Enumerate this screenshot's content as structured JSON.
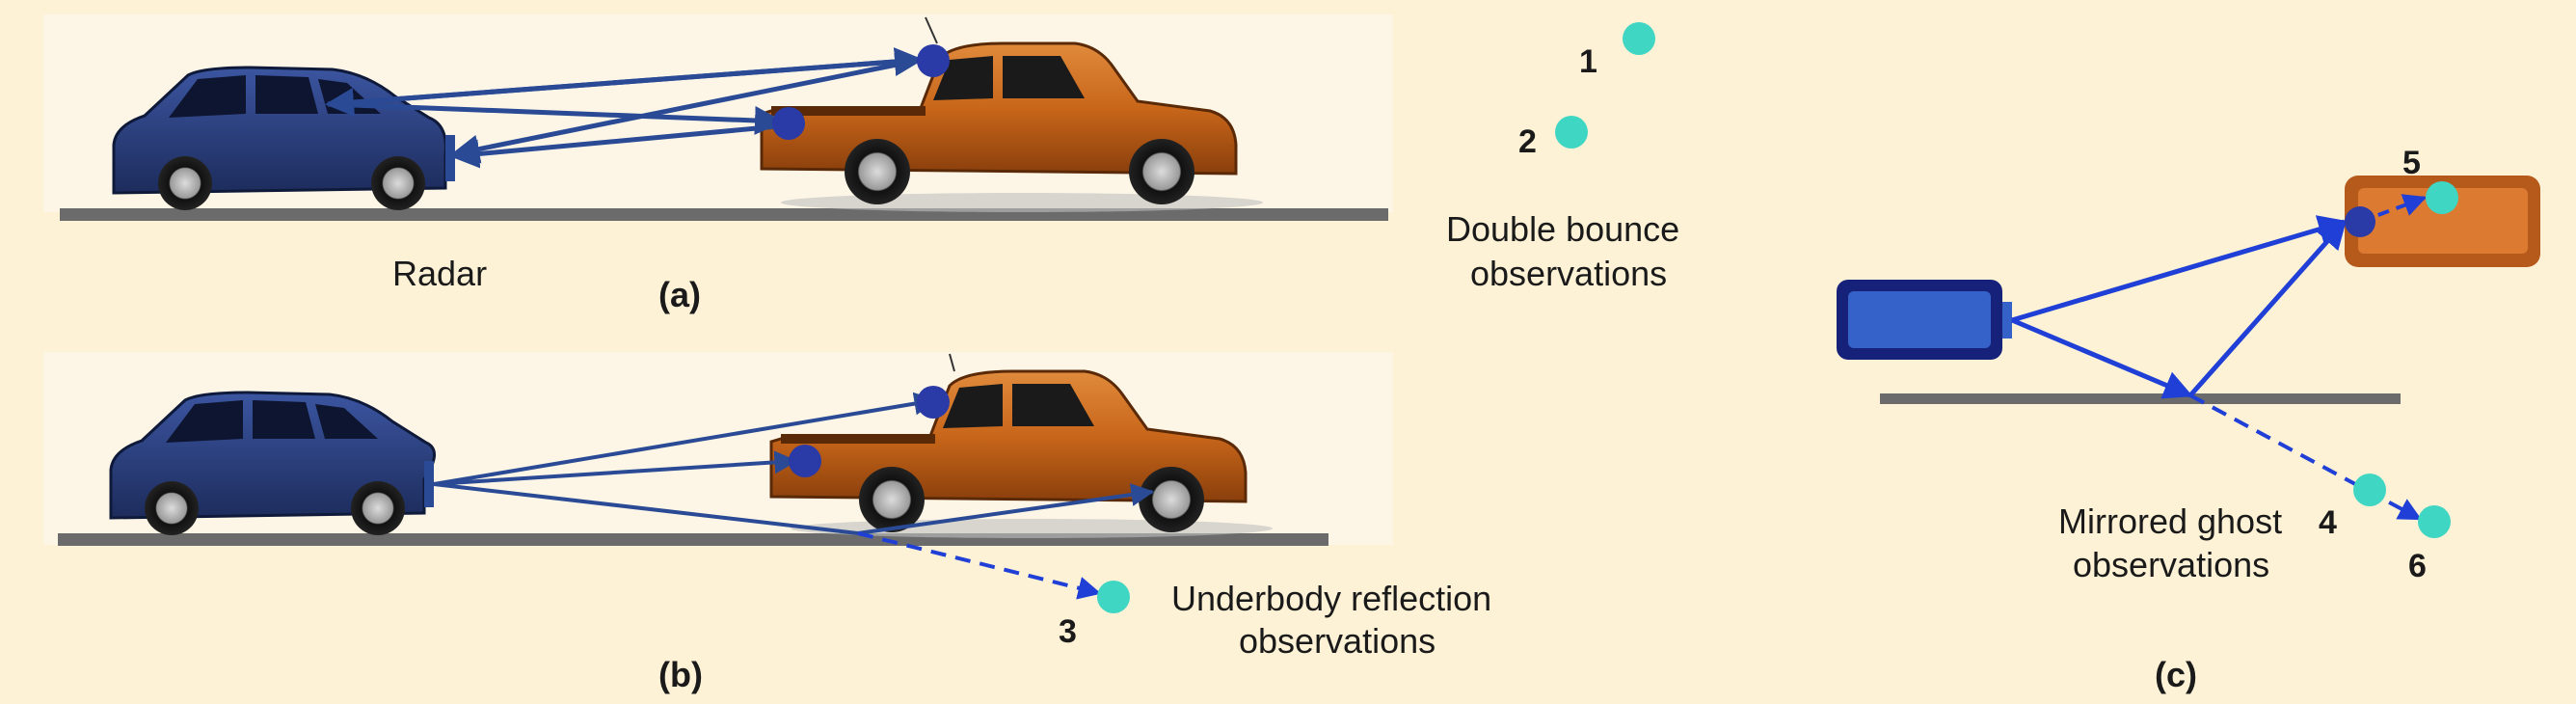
{
  "panel_a": {
    "radar_label": "Radar",
    "letter": "(a)",
    "obs_1": "1",
    "obs_2": "2",
    "caption_line1": "Double bounce",
    "caption_line2": "observations"
  },
  "panel_b": {
    "letter": "(b)",
    "obs_3": "3",
    "caption_line1": "Underbody reflection",
    "caption_line2": "observations"
  },
  "panel_c": {
    "letter": "(c)",
    "obs_4": "4",
    "obs_5": "5",
    "obs_6": "6",
    "caption_line1": "Mirrored ghost",
    "caption_line2": "observations"
  },
  "colors": {
    "background": "#fdf2d6",
    "ego_car": "#2c3f7a",
    "target_truck": "#c8661a",
    "ray": "#2a4a96",
    "ghost_ray": "#1f3fd6",
    "reflection_point": "#2a3aa6",
    "observation_point": "#3fd6c4",
    "ground": "#6b6b6b"
  }
}
